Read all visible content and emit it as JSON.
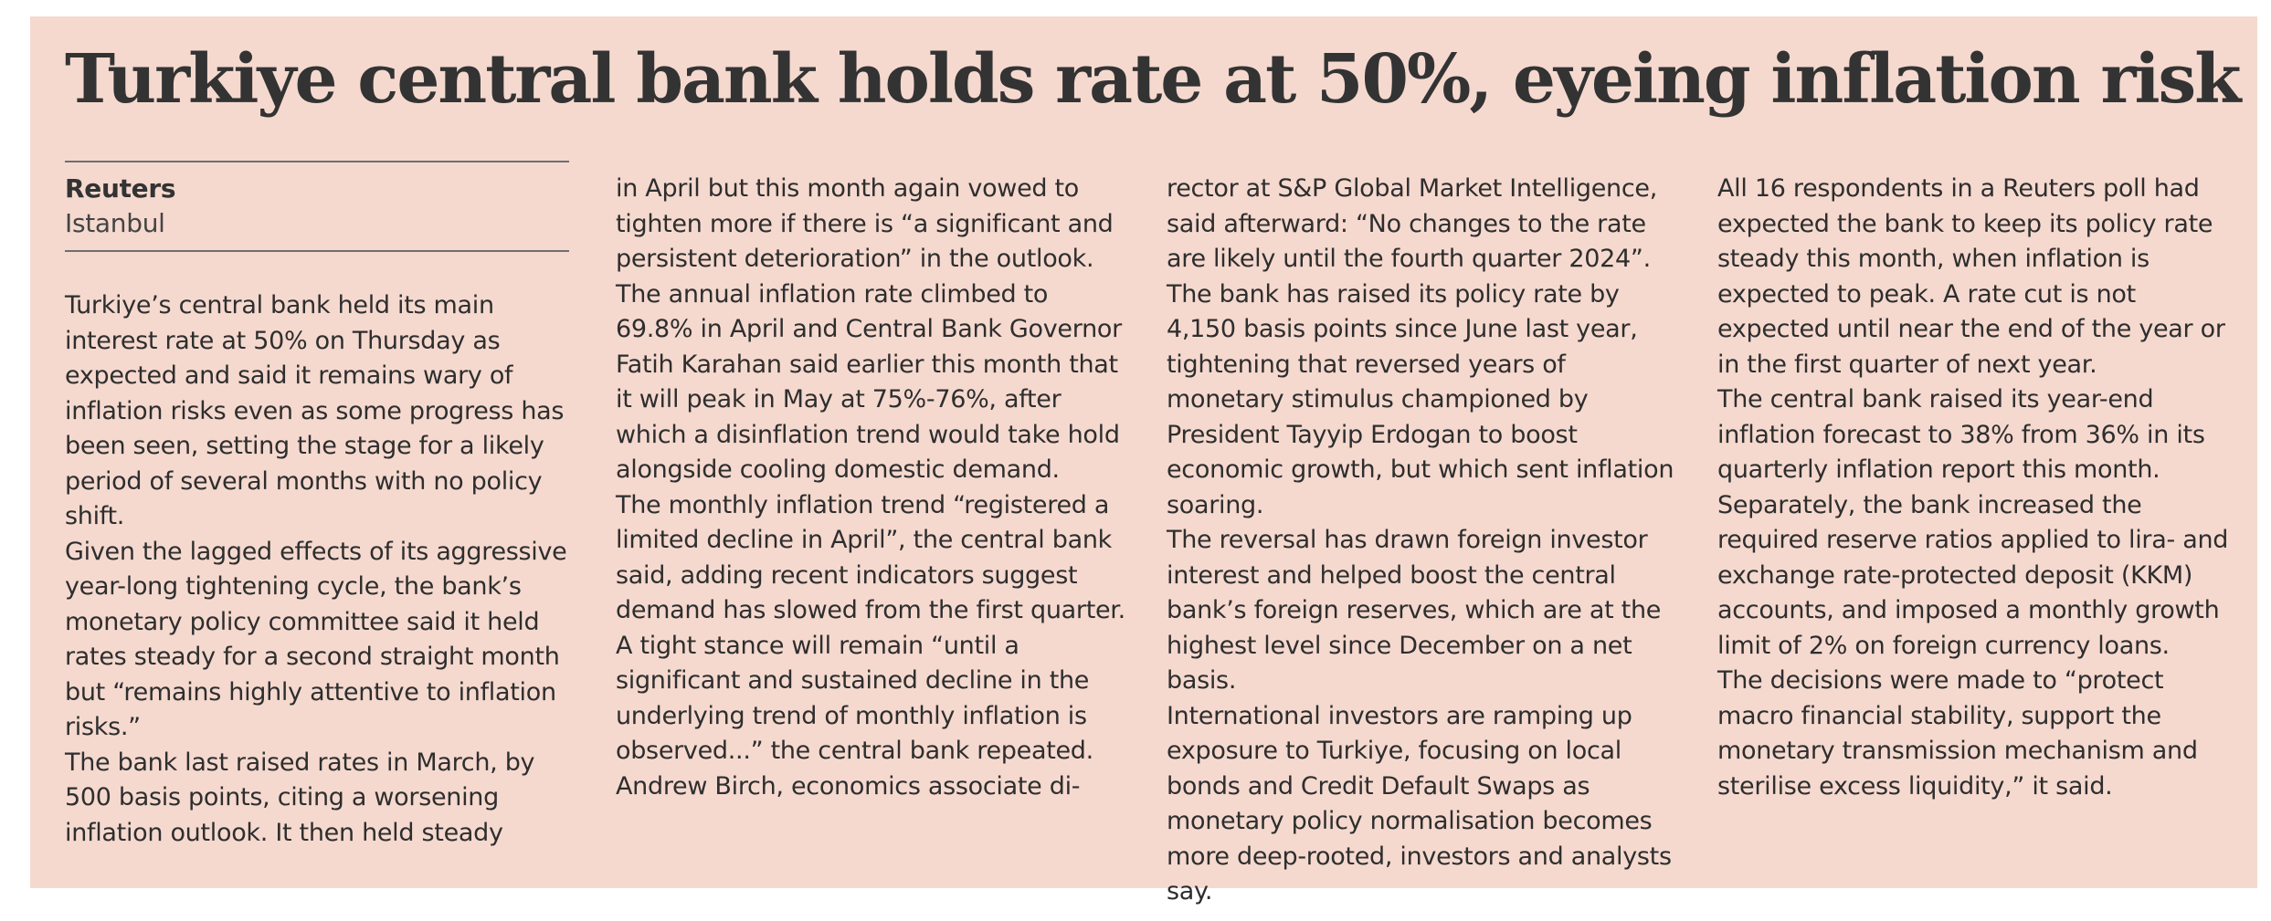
{
  "article": {
    "headline": "Turkiye central bank holds rate at 50%, eyeing inflation risk",
    "source": "Reuters",
    "location": "Istanbul",
    "columns": [
      [
        "Turkiye’s central bank held its main interest rate at 50% on Thursday as expected and said it remains wary of inflation risks even as some progress has been seen, setting the stage for a likely period of several months with no policy shift.",
        "Given the lagged effects of its aggressive year-long tightening cycle, the bank’s monetary policy committee said it held rates steady for a second straight month but “remains highly attentive to inflation risks.”",
        "The bank last raised rates in March, by 500 basis points, citing a worsening inflation outlook. It then held steady"
      ],
      [
        "in April but this month again vowed to tighten more if there is “a significant and persistent deterioration” in the outlook.",
        "The annual inflation rate climbed to 69.8% in April and Central Bank Governor Fatih Karahan said earlier this month that it will peak in May at 75%-76%, after which a disinflation trend would take hold alongside cooling domestic demand.",
        "The monthly inflation trend “registered a limited decline in April”, the central bank said, adding recent indicators suggest demand has slowed from the first quarter.",
        "A tight stance will remain “until a significant and sustained decline in the underlying trend of monthly inflation is observed...” the central bank repeated.",
        "Andrew Birch, economics associate di-"
      ],
      [
        "rector at S&P Global Market Intelligence, said afterward: “No changes to the rate are likely until the fourth quarter 2024”.",
        "The bank has raised its policy rate by 4,150 basis points since June last year, tightening that reversed years of monetary stimulus championed by President Tayyip Erdogan to boost economic growth, but which sent inflation soaring.",
        "The reversal has drawn foreign investor interest and helped boost the central bank’s foreign reserves, which are at the highest level since December on a net basis.",
        "International investors are ramping up exposure to Turkiye, focusing on local bonds and Credit Default Swaps as monetary policy normalisation becomes more deep-rooted, investors and analysts say."
      ],
      [
        "All 16 respondents in a Reuters poll had expected the bank to keep its policy rate steady this month, when inflation is expected to peak. A rate cut is not expected until near the end of the year or in the first quarter of next year.",
        "The central bank raised its year-end inflation forecast to 38% from 36% in its quarterly inflation report this month.",
        "Separately, the bank increased the required reserve ratios applied to lira- and exchange rate-protected deposit (KKM) accounts, and imposed a monthly growth limit of 2% on foreign currency loans.",
        "The decisions were made to “protect macro financial stability, support the monetary transmission mechanism and sterilise excess liquidity,” it said."
      ]
    ]
  }
}
